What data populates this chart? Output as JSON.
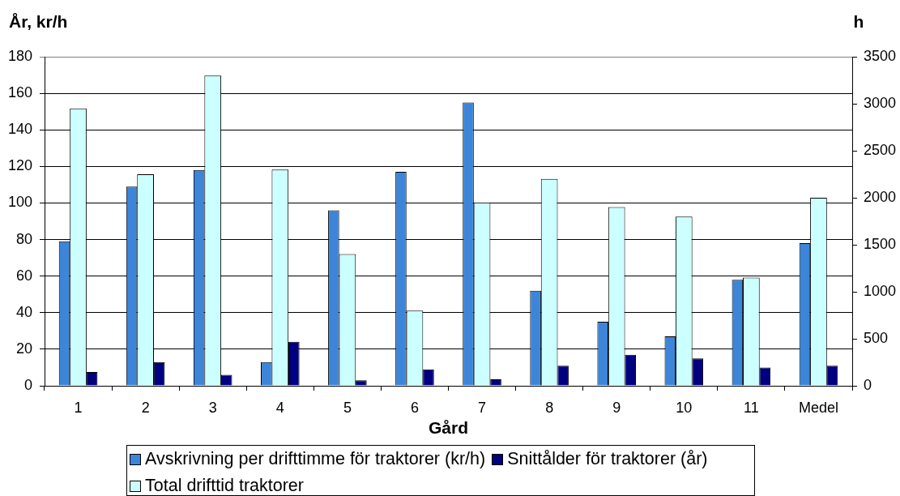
{
  "chart_data": {
    "type": "bar",
    "xlabel": "Gård",
    "ylabel": "År, kr/h",
    "y2label": "h",
    "categories": [
      "1",
      "2",
      "3",
      "4",
      "5",
      "6",
      "7",
      "8",
      "9",
      "10",
      "11",
      "Medel"
    ],
    "series": [
      {
        "name": "Avskrivning per drifttimme för traktorer (kr/h)",
        "color": "#3c85d9",
        "values": [
          79,
          109,
          118,
          13,
          96,
          117,
          155,
          52,
          35,
          27,
          58,
          78
        ]
      },
      {
        "name": "Snittålder för traktorer (år)",
        "color": "#000080",
        "values": [
          7.5,
          13,
          6,
          24,
          3,
          9,
          3.5,
          11,
          17,
          15,
          10,
          11
        ]
      },
      {
        "name": "Total drifttid traktorer",
        "color": "#ccffff",
        "axis": "y2",
        "values": [
          2950,
          2250,
          3300,
          2300,
          1400,
          800,
          1950,
          2200,
          1900,
          1800,
          1150,
          2000
        ]
      }
    ],
    "ylim": [
      0,
      180
    ],
    "yticks": [
      0,
      20,
      40,
      60,
      80,
      100,
      120,
      140,
      160,
      180
    ],
    "y2lim": [
      0,
      3500
    ],
    "y2ticks": [
      0,
      500,
      1000,
      1500,
      2000,
      2500,
      3000,
      3500
    ],
    "grid": "y",
    "legend": "bottom"
  }
}
